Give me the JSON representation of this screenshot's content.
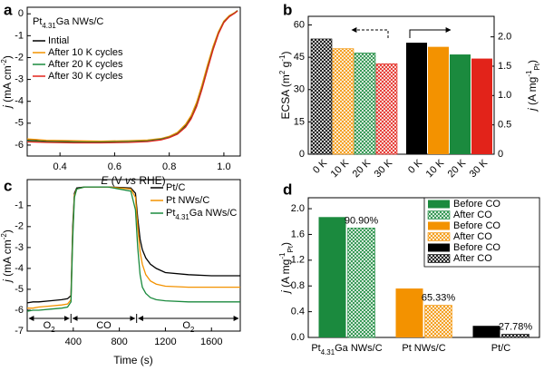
{
  "chart_data": [
    {
      "type": "line",
      "panel": "a",
      "annotation": [
        "Pt",
        "4.31",
        "Ga NWs/C"
      ],
      "x_label": [
        "E",
        " (V ",
        "vs",
        " RHE)"
      ],
      "y_label": [
        "j",
        " (mA cm",
        "-2",
        ")"
      ],
      "x": [
        0.28,
        0.35,
        0.45,
        0.55,
        0.65,
        0.72,
        0.77,
        0.8,
        0.83,
        0.86,
        0.88,
        0.9,
        0.92,
        0.94,
        0.96,
        0.98,
        1.0,
        1.02,
        1.04,
        1.05
      ],
      "series": [
        {
          "name": "Intial",
          "color": "#000000",
          "values": [
            -5.78,
            -5.82,
            -5.85,
            -5.85,
            -5.83,
            -5.8,
            -5.72,
            -5.62,
            -5.45,
            -5.1,
            -4.7,
            -4.1,
            -3.3,
            -2.4,
            -1.55,
            -0.85,
            -0.35,
            -0.1,
            0.05,
            0.15
          ]
        },
        {
          "name": "After 10 K cycles",
          "color": "#f39200",
          "values": [
            -5.72,
            -5.78,
            -5.8,
            -5.82,
            -5.8,
            -5.77,
            -5.7,
            -5.6,
            -5.42,
            -5.05,
            -4.65,
            -4.05,
            -3.25,
            -2.35,
            -1.5,
            -0.82,
            -0.33,
            -0.08,
            0.06,
            0.15
          ]
        },
        {
          "name": "After 20 K cycles",
          "color": "#1b8a3e",
          "values": [
            -5.8,
            -5.84,
            -5.86,
            -5.86,
            -5.84,
            -5.81,
            -5.73,
            -5.64,
            -5.48,
            -5.15,
            -4.78,
            -4.2,
            -3.4,
            -2.5,
            -1.62,
            -0.9,
            -0.38,
            -0.12,
            0.04,
            0.14
          ]
        },
        {
          "name": "After 30 K cycles",
          "color": "#e2231a",
          "values": [
            -5.85,
            -5.88,
            -5.9,
            -5.9,
            -5.88,
            -5.84,
            -5.76,
            -5.66,
            -5.5,
            -5.18,
            -4.8,
            -4.25,
            -3.45,
            -2.55,
            -1.66,
            -0.92,
            -0.4,
            -0.13,
            0.03,
            0.13
          ]
        }
      ],
      "xlim": [
        0.28,
        1.06
      ],
      "xticks": [
        0.4,
        0.6,
        0.8,
        {
          "value": 1,
          "label": "1.0"
        }
      ],
      "ylim": [
        -6.5,
        0.3
      ],
      "yticks": [
        -6,
        -5,
        -4,
        -3,
        -2,
        -1,
        0
      ]
    },
    {
      "type": "bar",
      "panel": "b",
      "categories": [
        "0 K",
        "10 K",
        "20 K",
        "30 K"
      ],
      "colors": [
        "#000000",
        "#f39200",
        "#1b8a3e",
        "#e2231a"
      ],
      "y_label": [
        "ECSA (m",
        "2",
        " g",
        "-1",
        ")"
      ],
      "y2_label": [
        "j",
        " (A mg",
        "-1",
        "Pt",
        ")"
      ],
      "series": [
        {
          "values": [
            53.5,
            49,
            47,
            42
          ],
          "hatched": true
        },
        {
          "values": [
            1.9,
            1.83,
            1.7,
            1.63
          ],
          "axis": "y2"
        }
      ],
      "ylim": [
        0,
        64
      ],
      "yticks": [
        0,
        15,
        30,
        45,
        60
      ],
      "y2lim": [
        0,
        2.35
      ],
      "y2ticks": [
        0,
        0.5,
        {
          "value": 1,
          "label": "1.0"
        },
        1.5,
        {
          "value": 2,
          "label": "2.0"
        }
      ]
    },
    {
      "type": "line",
      "panel": "c",
      "x_label": "Time (s)",
      "y_label": [
        "j",
        " (mA cm",
        "-2",
        ")"
      ],
      "x": [
        0,
        50,
        100,
        200,
        300,
        350,
        380,
        395,
        410,
        430,
        500,
        700,
        900,
        940,
        960,
        980,
        1000,
        1030,
        1070,
        1120,
        1200,
        1400,
        1600,
        1850
      ],
      "series": [
        {
          "name": "Pt/C",
          "color": "#000000",
          "values": [
            -5.65,
            -5.6,
            -5.6,
            -5.55,
            -5.5,
            -5.45,
            -5.3,
            -2.0,
            -0.4,
            -0.15,
            -0.1,
            -0.1,
            -0.15,
            -0.4,
            -1.6,
            -2.6,
            -3.1,
            -3.5,
            -3.8,
            -4.0,
            -4.2,
            -4.3,
            -4.35,
            -4.35
          ]
        },
        {
          "name": "Pt NWs/C",
          "color": "#f39200",
          "values": [
            -5.9,
            -5.9,
            -5.85,
            -5.8,
            -5.75,
            -5.7,
            -5.5,
            -2.3,
            -0.5,
            -0.2,
            -0.1,
            -0.1,
            -0.2,
            -0.6,
            -2.0,
            -3.2,
            -3.8,
            -4.3,
            -4.6,
            -4.75,
            -4.85,
            -4.9,
            -4.9,
            -4.9
          ]
        },
        {
          "name": [
            "Pt",
            "4.31",
            "Ga NWs/C"
          ],
          "color": "#1b8a3e",
          "values": [
            -6.05,
            -6.0,
            -6.0,
            -5.95,
            -5.9,
            -5.85,
            -5.6,
            -2.6,
            -0.6,
            -0.2,
            -0.1,
            -0.1,
            -0.3,
            -1.2,
            -3.0,
            -4.3,
            -4.9,
            -5.2,
            -5.4,
            -5.5,
            -5.55,
            -5.6,
            -5.6,
            -5.6
          ]
        }
      ],
      "phases": [
        {
          "label": [
            "O",
            "2"
          ],
          "from": 0,
          "to": 380,
          "color": "#3b7fd0"
        },
        {
          "label": "CO",
          "from": 380,
          "to": 950,
          "color": "#e2231a"
        },
        {
          "label": [
            "O",
            "2"
          ],
          "from": 950,
          "to": 1850,
          "color": "#3b7fd0"
        }
      ],
      "xlim": [
        0,
        1850
      ],
      "xticks": [
        400,
        800,
        1200,
        1600
      ],
      "ylim": [
        -7,
        0.25
      ],
      "yticks": [
        -7,
        -6,
        -5,
        -4,
        -3,
        -2,
        -1
      ]
    },
    {
      "type": "bar",
      "panel": "d",
      "y_label": [
        "j",
        " (A mg",
        "-1",
        "Pt",
        ")"
      ],
      "categories": [
        [
          "Pt",
          "4.31",
          "Ga NWs/C"
        ],
        "Pt NWs/C",
        "Pt/C"
      ],
      "colors": [
        "#1b8a3e",
        "#f39200",
        "#000000"
      ],
      "series": [
        {
          "name": "Before CO",
          "values": [
            1.87,
            0.76,
            0.18
          ]
        },
        {
          "name": "After CO",
          "values": [
            1.7,
            0.5,
            0.05
          ],
          "hatched": true
        }
      ],
      "annotations": [
        "90.90%",
        "65.33%",
        "27.78%"
      ],
      "ylim": [
        0,
        2.17
      ],
      "yticks": [
        {
          "value": 0,
          "label": "0.0"
        },
        0.4,
        0.8,
        1.2,
        1.6,
        {
          "value": 2,
          "label": "2.0"
        }
      ]
    }
  ]
}
